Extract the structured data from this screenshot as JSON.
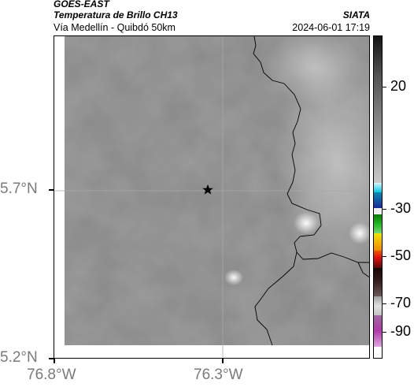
{
  "header": {
    "satellite": "GOES-EAST",
    "product": "Temperatura de Brillo CH13",
    "location": "Vía Medellín - Quibdó 50km",
    "agency": "SIATA",
    "timestamp": "2024-06-01 17:19"
  },
  "map": {
    "y_ticks": [
      "5.7°N",
      "5.2°N"
    ],
    "x_ticks": [
      "76.8°W",
      "76.3°W"
    ],
    "marker": "star-icon"
  },
  "colorbar": {
    "ticks": [
      "20",
      "-30",
      "-50",
      "-70",
      "-90"
    ],
    "colors": {
      "warm_gray_top": "#202020",
      "warm_gray_mid": "#bdbdbd",
      "cyan": "#00c8e6",
      "blue": "#1a2a9a",
      "green": "#1fb81f",
      "yellow": "#f0e400",
      "red": "#e01010",
      "dark": "#2a0a0a",
      "magenta": "#b03aa8"
    }
  }
}
